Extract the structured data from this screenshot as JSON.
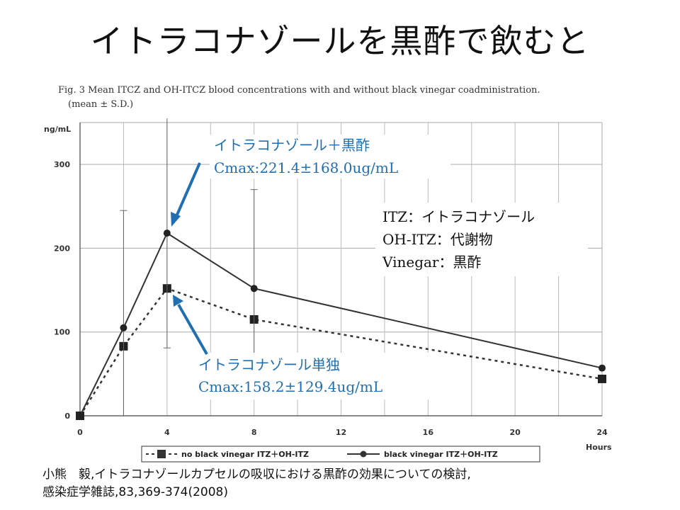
{
  "slide_title": "イトラコナゾールを黒酢で飲むと",
  "citation": {
    "line1": "小熊　毅,イトラコナゾールカプセルの吸収における黒酢の効果についての検討,",
    "line2": "感染症学雑誌,83,369-374(2008)"
  },
  "chart_data": {
    "type": "line",
    "title": "Fig. 3  Mean ITCZ and OH-ITCZ blood concentrations with and without black vinegar coadministration.",
    "subtitle": "(mean ± S.D.)",
    "ylabel": "ng/mL",
    "xlabel": "Hours",
    "xlim": [
      0,
      24
    ],
    "ylim": [
      0,
      350
    ],
    "x_ticks": [
      "0",
      "4",
      "8",
      "12",
      "16",
      "20",
      "24"
    ],
    "y_ticks": [
      "0",
      "100",
      "200",
      "300"
    ],
    "grid": true,
    "legend_position": "bottom",
    "series": [
      {
        "name": "no black vinegar ITZ＋OH-ITZ",
        "style": "dashed-square",
        "x": [
          0,
          2,
          4,
          8,
          24
        ],
        "y": [
          0,
          83,
          152,
          115,
          44
        ],
        "err_upper": [
          null,
          null,
          null,
          null,
          null
        ]
      },
      {
        "name": "black vinegar ITZ＋OH-ITZ",
        "style": "solid-circle",
        "x": [
          0,
          2,
          4,
          8,
          24
        ],
        "y": [
          0,
          105,
          218,
          152,
          57
        ],
        "err_upper": [
          null,
          245,
          355,
          270,
          null
        ]
      }
    ],
    "annotations": {
      "vinegar_label": "イトラコナゾール＋黒酢",
      "vinegar_cmax": "Cmax:221.4±168.0ug/mL",
      "alone_label": "イトラコナゾール単独",
      "alone_cmax": "Cmax:158.2±129.4ug/mL",
      "key_line1": "ITZ：イトラコナゾール",
      "key_line2": "OH-ITZ：代謝物",
      "key_line3": "Vinegar：黒酢"
    },
    "annotation_color": "#1f6fb2"
  }
}
